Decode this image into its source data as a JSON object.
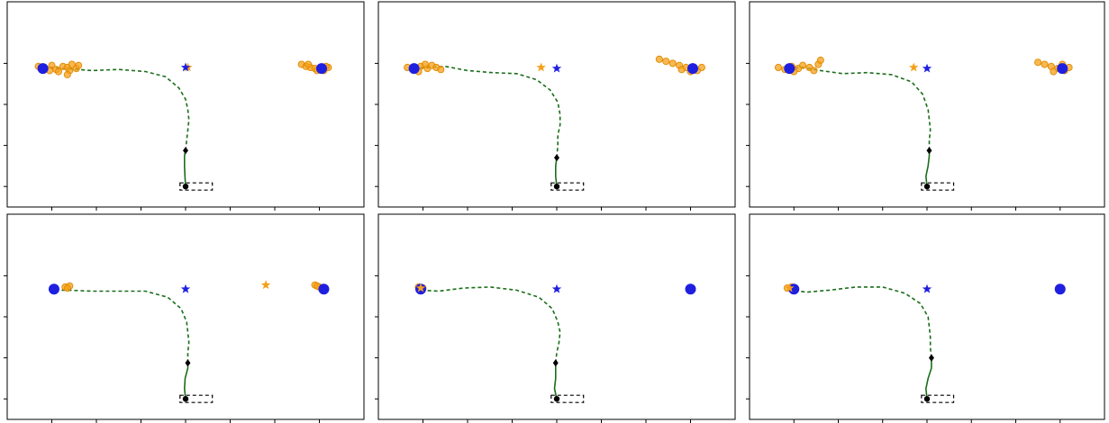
{
  "colors": {
    "axis": "#000000",
    "trajectory": "#1a6e1a",
    "goal_true": "#1f1fe0",
    "prediction": "#f5a01a",
    "vehicle": "#000000",
    "ego_box": "#000000"
  },
  "chart_data": [
    {
      "type": "scatter",
      "panel": "top-left",
      "xlim": [
        -8,
        8
      ],
      "ylim": [
        -10,
        10
      ],
      "grid": false,
      "legend": "none",
      "trajectory": {
        "observed": [
          [
            0,
            -8.0
          ],
          [
            -0.03,
            -7.0
          ],
          [
            -0.05,
            -6.0
          ],
          [
            -0.05,
            -5.0
          ],
          [
            0,
            -4.5
          ]
        ],
        "future": [
          [
            0,
            -4.5
          ],
          [
            0.05,
            -3.5
          ],
          [
            0.1,
            -2.5
          ],
          [
            0.15,
            -1.5
          ],
          [
            0.1,
            -0.5
          ],
          [
            0,
            0.5
          ],
          [
            -0.3,
            1.6
          ],
          [
            -0.9,
            2.7
          ],
          [
            -1.8,
            3.2
          ],
          [
            -3.0,
            3.4
          ],
          [
            -4.2,
            3.3
          ],
          [
            -5.4,
            3.5
          ],
          [
            -6.0,
            3.6
          ],
          [
            -6.4,
            3.6
          ]
        ]
      },
      "current_position": [
        0,
        -4.5
      ],
      "vehicle_position": [
        0,
        -8.0
      ],
      "goals_true": [
        [
          -6.4,
          3.5
        ],
        [
          6.1,
          3.5
        ]
      ],
      "goal_star_true": [
        0,
        3.6
      ],
      "goal_star_predicted": [
        0.1,
        3.6
      ],
      "predicted_endpoints": [
        [
          -6.6,
          3.7
        ],
        [
          -6.3,
          3.5
        ],
        [
          -6.0,
          3.8
        ],
        [
          -5.8,
          3.4
        ],
        [
          -5.5,
          3.7
        ],
        [
          -5.3,
          3.6
        ],
        [
          -5.1,
          3.9
        ],
        [
          -4.9,
          3.5
        ],
        [
          -6.1,
          3.3
        ],
        [
          -5.7,
          3.2
        ],
        [
          -5.2,
          3.3
        ],
        [
          -4.8,
          3.8
        ],
        [
          -5.3,
          2.9
        ],
        [
          5.2,
          3.9
        ],
        [
          5.4,
          3.7
        ],
        [
          5.6,
          3.6
        ],
        [
          5.8,
          3.5
        ],
        [
          6.0,
          3.4
        ],
        [
          6.2,
          3.3
        ],
        [
          6.4,
          3.6
        ],
        [
          5.5,
          3.9
        ],
        [
          5.9,
          3.3
        ],
        [
          6.3,
          3.7
        ]
      ]
    },
    {
      "type": "scatter",
      "panel": "top-center",
      "xlim": [
        -8,
        8
      ],
      "ylim": [
        -10,
        10
      ],
      "grid": false,
      "legend": "none",
      "trajectory": {
        "observed": [
          [
            0,
            -8.0
          ],
          [
            -0.05,
            -7.0
          ],
          [
            -0.05,
            -6.0
          ],
          [
            0,
            -5.2
          ]
        ],
        "future": [
          [
            0,
            -5.2
          ],
          [
            0.05,
            -4.0
          ],
          [
            0.05,
            -3.0
          ],
          [
            0.15,
            -2.0
          ],
          [
            0.15,
            -1.0
          ],
          [
            0.05,
            0.2
          ],
          [
            -0.3,
            1.4
          ],
          [
            -0.9,
            2.4
          ],
          [
            -1.8,
            3.0
          ],
          [
            -2.9,
            3.1
          ],
          [
            -4.0,
            3.3
          ],
          [
            -5.0,
            3.7
          ],
          [
            -5.9,
            3.6
          ],
          [
            -6.4,
            3.5
          ]
        ]
      },
      "current_position": [
        0,
        -5.2
      ],
      "vehicle_position": [
        0,
        -8.0
      ],
      "goals_true": [
        [
          -6.4,
          3.5
        ],
        [
          6.1,
          3.5
        ]
      ],
      "goal_star_true": [
        0,
        3.5
      ],
      "goal_star_predicted": [
        -0.7,
        3.6
      ],
      "predicted_endpoints": [
        [
          -6.7,
          3.6
        ],
        [
          -6.4,
          3.4
        ],
        [
          -6.1,
          3.7
        ],
        [
          -5.8,
          3.5
        ],
        [
          -5.6,
          3.8
        ],
        [
          -5.4,
          3.6
        ],
        [
          -5.2,
          3.4
        ],
        [
          -6.2,
          3.2
        ],
        [
          -5.9,
          3.9
        ],
        [
          4.6,
          4.4
        ],
        [
          4.9,
          4.2
        ],
        [
          5.2,
          4.0
        ],
        [
          5.5,
          3.8
        ],
        [
          5.8,
          3.6
        ],
        [
          6.1,
          3.5
        ],
        [
          6.3,
          3.3
        ],
        [
          6.5,
          3.6
        ],
        [
          5.6,
          3.4
        ],
        [
          6.0,
          3.2
        ]
      ]
    },
    {
      "type": "scatter",
      "panel": "top-right",
      "xlim": [
        -8,
        8
      ],
      "ylim": [
        -10,
        10
      ],
      "grid": false,
      "legend": "none",
      "trajectory": {
        "observed": [
          [
            0,
            -8.0
          ],
          [
            -0.05,
            -7.0
          ],
          [
            0.05,
            -6.0
          ],
          [
            0.1,
            -5.0
          ],
          [
            0.1,
            -4.5
          ]
        ],
        "future": [
          [
            0.1,
            -4.5
          ],
          [
            0.1,
            -3.5
          ],
          [
            0.15,
            -2.5
          ],
          [
            0.1,
            -1.5
          ],
          [
            0.05,
            -0.5
          ],
          [
            -0.2,
            1.0
          ],
          [
            -0.7,
            2.2
          ],
          [
            -1.6,
            2.9
          ],
          [
            -2.7,
            3.1
          ],
          [
            -3.8,
            3.0
          ],
          [
            -4.8,
            3.3
          ],
          [
            -5.6,
            3.6
          ],
          [
            -6.2,
            3.5
          ]
        ]
      },
      "current_position": [
        0.1,
        -4.5
      ],
      "vehicle_position": [
        0,
        -8.0
      ],
      "goals_true": [
        [
          -6.2,
          3.5
        ],
        [
          6.1,
          3.5
        ]
      ],
      "goal_star_true": [
        0,
        3.5
      ],
      "goal_star_predicted": [
        -0.6,
        3.6
      ],
      "predicted_endpoints": [
        [
          -6.7,
          3.6
        ],
        [
          -6.4,
          3.4
        ],
        [
          -6.1,
          3.7
        ],
        [
          -5.8,
          3.5
        ],
        [
          -5.6,
          3.8
        ],
        [
          -5.3,
          3.6
        ],
        [
          -5.1,
          3.3
        ],
        [
          -4.9,
          3.9
        ],
        [
          -4.8,
          4.3
        ],
        [
          -6.0,
          3.2
        ],
        [
          5.0,
          4.1
        ],
        [
          5.3,
          3.9
        ],
        [
          5.6,
          3.7
        ],
        [
          5.9,
          3.5
        ],
        [
          6.2,
          3.3
        ],
        [
          6.4,
          3.6
        ],
        [
          5.7,
          3.2
        ],
        [
          6.1,
          3.9
        ]
      ]
    },
    {
      "type": "scatter",
      "panel": "bottom-left",
      "xlim": [
        -8,
        8
      ],
      "ylim": [
        -10,
        10
      ],
      "grid": false,
      "legend": "none",
      "trajectory": {
        "observed": [
          [
            0,
            -8.0
          ],
          [
            -0.05,
            -7.0
          ],
          [
            -0.02,
            -6.0
          ],
          [
            0.1,
            -5.0
          ],
          [
            0.1,
            -4.5
          ]
        ],
        "future": [
          [
            0.1,
            -4.5
          ],
          [
            0.1,
            -3.5
          ],
          [
            0.15,
            -2.5
          ],
          [
            0.1,
            -1.5
          ],
          [
            0.05,
            -0.5
          ],
          [
            -0.2,
            0.8
          ],
          [
            -0.8,
            1.9
          ],
          [
            -1.8,
            2.5
          ],
          [
            -3.0,
            2.5
          ],
          [
            -4.2,
            2.5
          ],
          [
            -5.3,
            2.6
          ],
          [
            -5.9,
            2.6
          ]
        ]
      },
      "current_position": [
        0.1,
        -4.5
      ],
      "vehicle_position": [
        0,
        -8.0
      ],
      "goals_true": [
        [
          -5.9,
          2.7
        ],
        [
          6.2,
          2.7
        ]
      ],
      "goal_star_true": [
        0,
        2.7
      ],
      "goal_star_predicted": [
        3.6,
        3.1
      ],
      "predicted_endpoints": [
        [
          -5.4,
          2.9
        ],
        [
          -5.2,
          3.0
        ],
        [
          -5.3,
          2.8
        ],
        [
          5.8,
          3.1
        ],
        [
          6.0,
          2.9
        ],
        [
          5.9,
          3.0
        ]
      ]
    },
    {
      "type": "scatter",
      "panel": "bottom-center",
      "xlim": [
        -8,
        8
      ],
      "ylim": [
        -10,
        10
      ],
      "grid": false,
      "legend": "none",
      "trajectory": {
        "observed": [
          [
            0,
            -8.0
          ],
          [
            -0.1,
            -7.0
          ],
          [
            -0.05,
            -6.0
          ],
          [
            -0.05,
            -4.5
          ]
        ],
        "future": [
          [
            -0.05,
            -4.5
          ],
          [
            0,
            -3.5
          ],
          [
            0.1,
            -2.5
          ],
          [
            0.15,
            -1.5
          ],
          [
            0.05,
            -0.5
          ],
          [
            -0.2,
            0.8
          ],
          [
            -0.8,
            1.9
          ],
          [
            -1.8,
            2.6
          ],
          [
            -3.0,
            2.9
          ],
          [
            -4.2,
            2.8
          ],
          [
            -5.3,
            2.5
          ],
          [
            -6.1,
            2.6
          ]
        ]
      },
      "current_position": [
        -0.05,
        -4.5
      ],
      "vehicle_position": [
        0,
        -8.0
      ],
      "goals_true": [
        [
          -6.1,
          2.7
        ],
        [
          6.0,
          2.7
        ]
      ],
      "goal_star_true": [
        0,
        2.7
      ],
      "goal_star_predicted": [
        -6.1,
        2.8
      ],
      "predicted_endpoints": [
        [
          -6.2,
          2.9
        ],
        [
          -6.0,
          2.8
        ]
      ]
    },
    {
      "type": "scatter",
      "panel": "bottom-right",
      "xlim": [
        -8,
        8
      ],
      "ylim": [
        -10,
        10
      ],
      "grid": false,
      "legend": "none",
      "trajectory": {
        "observed": [
          [
            0,
            -8.0
          ],
          [
            -0.05,
            -7.0
          ],
          [
            0.05,
            -6.0
          ],
          [
            0.2,
            -5.0
          ],
          [
            0.2,
            -4.0
          ]
        ],
        "future": [
          [
            0.2,
            -4.0
          ],
          [
            0.15,
            -3.0
          ],
          [
            0.15,
            -2.0
          ],
          [
            0.1,
            -1.0
          ],
          [
            0.05,
            0.0
          ],
          [
            -0.3,
            1.3
          ],
          [
            -1.0,
            2.3
          ],
          [
            -2.0,
            2.9
          ],
          [
            -3.2,
            2.9
          ],
          [
            -4.4,
            2.6
          ],
          [
            -5.4,
            2.4
          ],
          [
            -6.2,
            2.6
          ]
        ]
      },
      "current_position": [
        0.2,
        -4.0
      ],
      "vehicle_position": [
        0,
        -8.0
      ],
      "goals_true": [
        [
          -6.0,
          2.7
        ],
        [
          6.0,
          2.7
        ]
      ],
      "goal_star_true": [
        0,
        2.7
      ],
      "goal_star_predicted": [
        -6.2,
        2.8
      ],
      "predicted_endpoints": [
        [
          -6.3,
          2.8
        ],
        [
          -6.1,
          2.9
        ],
        [
          -6.0,
          2.7
        ]
      ]
    }
  ]
}
